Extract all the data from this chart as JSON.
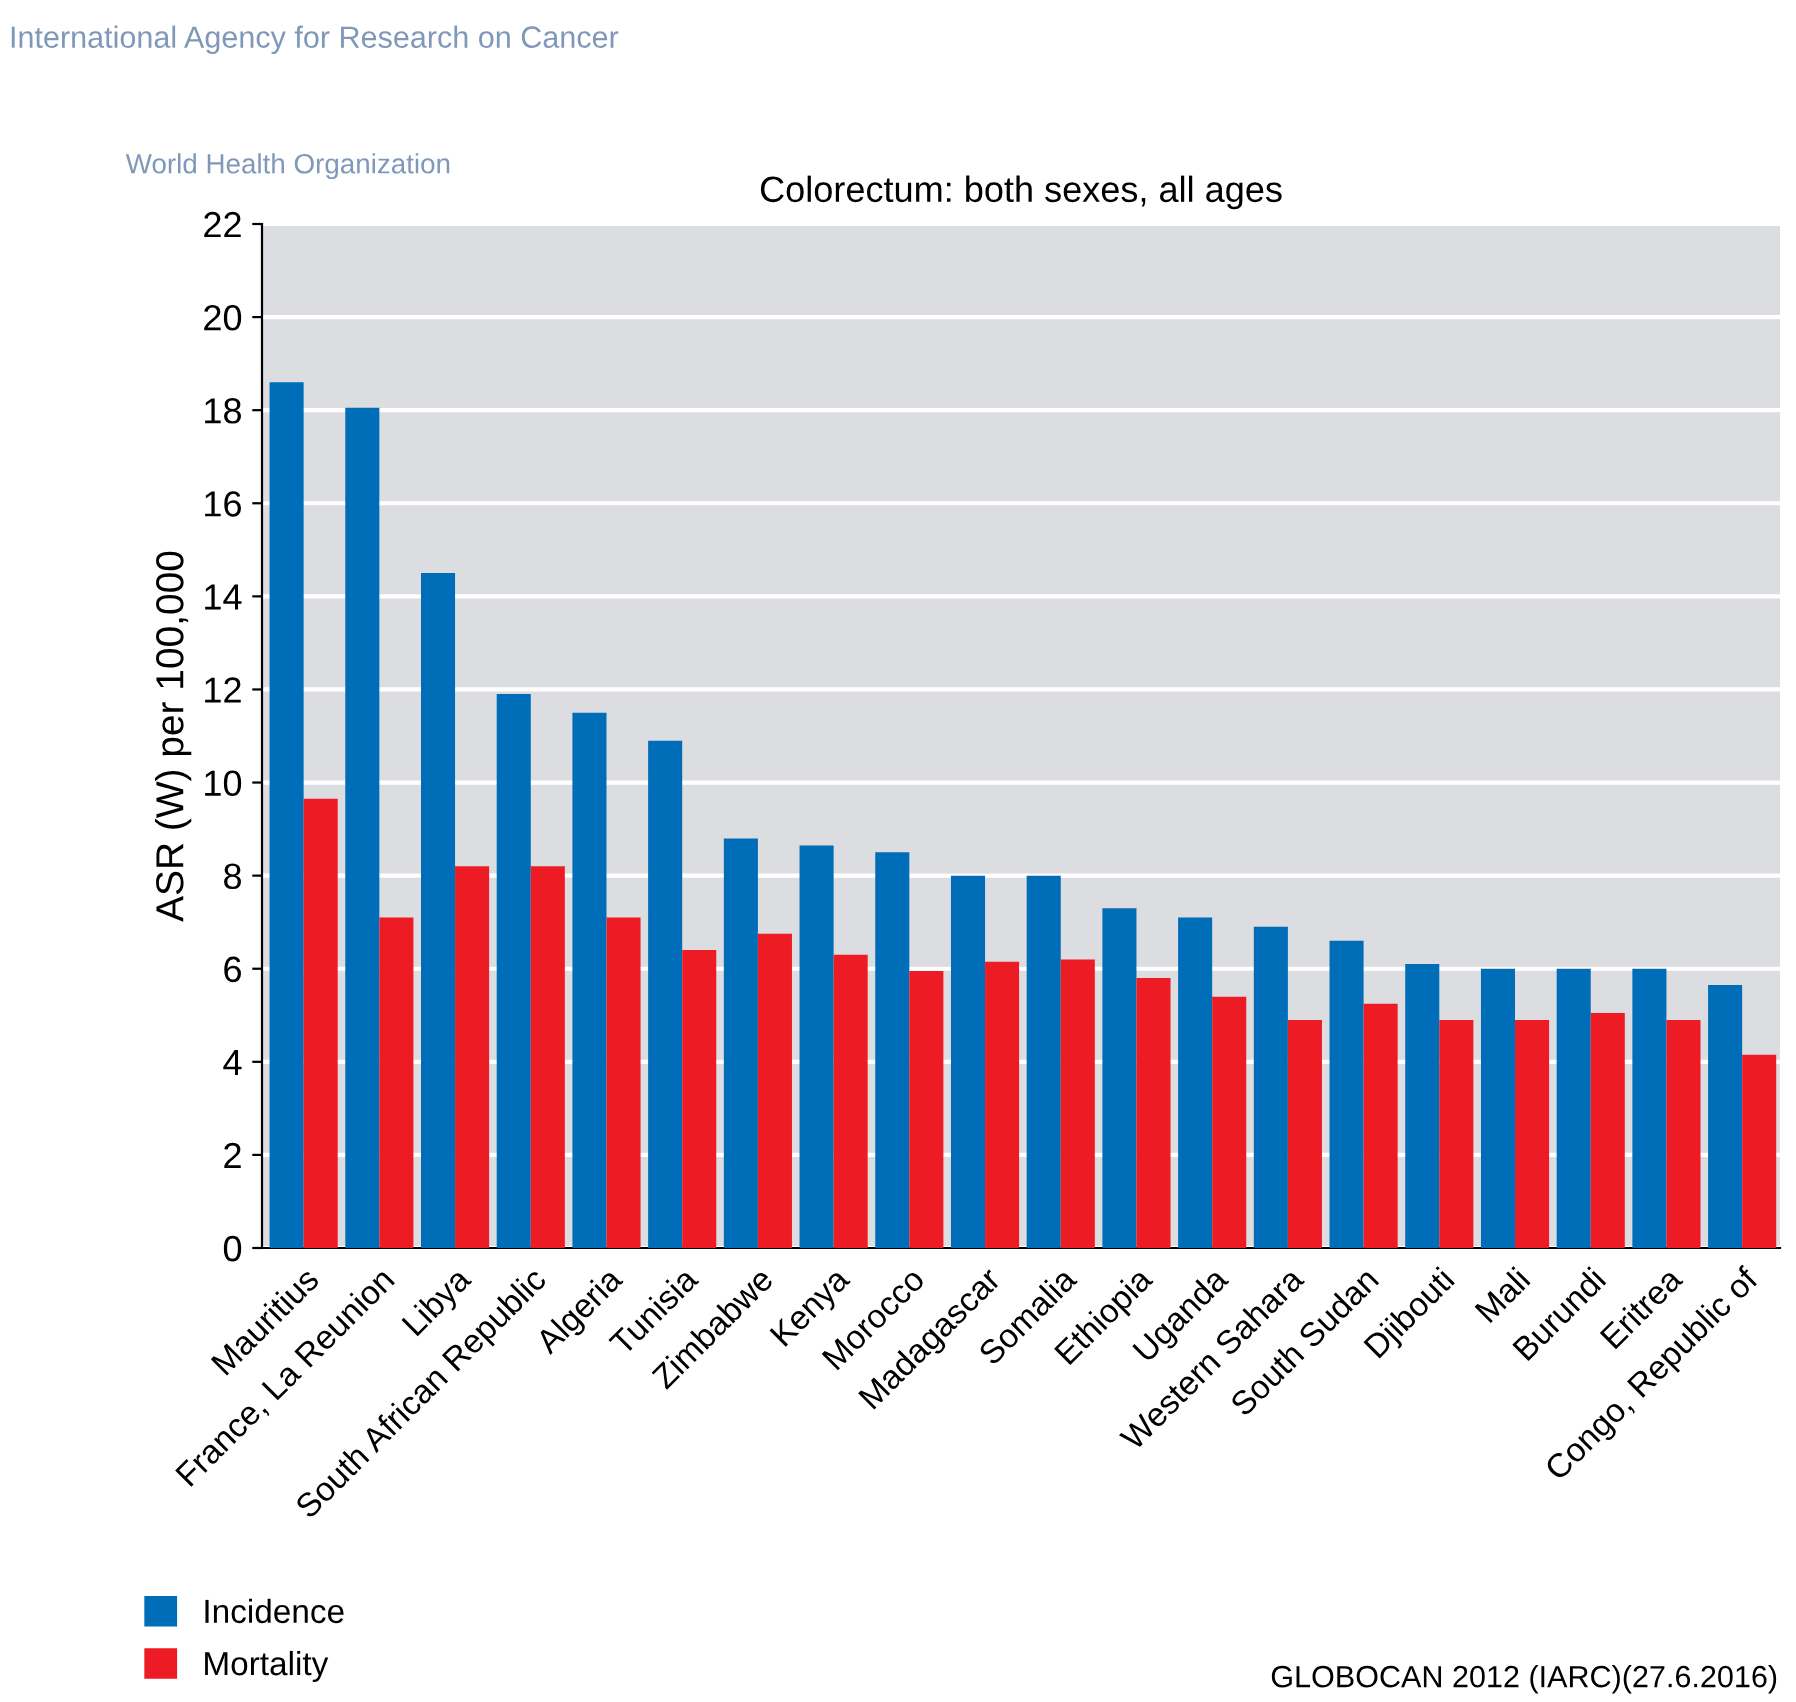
{
  "chart_data": {
    "type": "bar",
    "title": "Colorectum: both sexes, all ages",
    "ylabel": "ASR (W) per 100,000",
    "categories": [
      "Mauritius",
      "France, La Reunion",
      "Libya",
      "South African Republic",
      "Algeria",
      "Tunisia",
      "Zimbabwe",
      "Kenya",
      "Morocco",
      "Madagascar",
      "Somalia",
      "Ethiopia",
      "Uganda",
      "Western Sahara",
      "South Sudan",
      "Djibouti",
      "Mali",
      "Burundi",
      "Eritrea",
      "Congo, Republic of"
    ],
    "series": [
      {
        "name": "Incidence",
        "color": "#006db8",
        "values": [
          18.6,
          18.05,
          14.5,
          11.9,
          11.5,
          10.9,
          8.8,
          8.65,
          8.5,
          8.0,
          8.0,
          7.3,
          7.1,
          6.9,
          6.6,
          6.1,
          6.0,
          6.0,
          6.0,
          5.65
        ]
      },
      {
        "name": "Mortality",
        "color": "#ed1c24",
        "values": [
          9.65,
          7.1,
          8.2,
          8.2,
          7.1,
          6.4,
          6.75,
          6.3,
          5.95,
          6.15,
          6.2,
          5.8,
          5.4,
          4.9,
          5.25,
          4.9,
          4.9,
          5.05,
          4.9,
          4.15
        ]
      }
    ],
    "ylim": [
      0,
      22
    ],
    "yticks": [
      0,
      2,
      4,
      6,
      8,
      10,
      12,
      14,
      16,
      18,
      20,
      22
    ],
    "grid": "y",
    "legend": "bottom left",
    "annotations": [
      "International Agency for Research on Cancer",
      "World Health Organization",
      "GLOBOCAN 2012 (IARC)(27.6.2016)"
    ]
  }
}
